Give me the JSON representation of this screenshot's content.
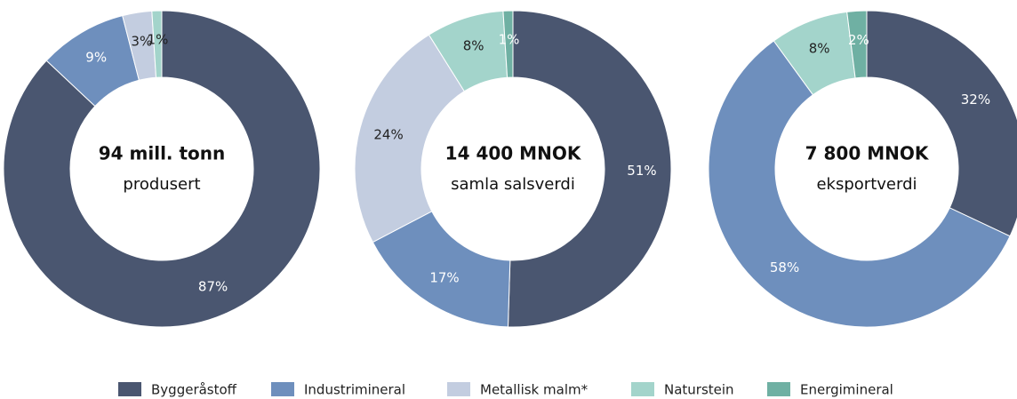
{
  "chart_data": [
    {
      "type": "pie",
      "title": "94 mill. tonn",
      "subtitle": "produsert",
      "categories": [
        "Byggeråstoff",
        "Industrimineral",
        "Metallisk malm*",
        "Naturstein",
        "Energimineral"
      ],
      "values": [
        87,
        9,
        3,
        1,
        null
      ],
      "value_labels": [
        "87%",
        "9%",
        "3%",
        "1%",
        null
      ],
      "colors": [
        "#4a5670",
        "#6e8fbd",
        "#c3cde0",
        "#a3d4cb",
        "#6fb0a3"
      ]
    },
    {
      "type": "pie",
      "title": "14 400 MNOK",
      "subtitle": "samla salsverdi",
      "categories": [
        "Byggeråstoff",
        "Industrimineral",
        "Metallisk malm*",
        "Naturstein",
        "Energimineral"
      ],
      "values": [
        51,
        17,
        24,
        8,
        1
      ],
      "value_labels": [
        "51%",
        "17%",
        "24%",
        "8%",
        "1%"
      ],
      "colors": [
        "#4a5670",
        "#6e8fbd",
        "#c3cde0",
        "#a3d4cb",
        "#6fb0a3"
      ]
    },
    {
      "type": "pie",
      "title": "7 800 MNOK",
      "subtitle": "eksportverdi",
      "categories": [
        "Byggeråstoff",
        "Industrimineral",
        "Metallisk malm*",
        "Naturstein",
        "Energimineral"
      ],
      "values": [
        32,
        58,
        null,
        8,
        2
      ],
      "value_labels": [
        "32%",
        "58%",
        null,
        "8%",
        "2%"
      ],
      "colors": [
        "#4a5670",
        "#6e8fbd",
        "#c3cde0",
        "#a3d4cb",
        "#6fb0a3"
      ]
    }
  ]
}
